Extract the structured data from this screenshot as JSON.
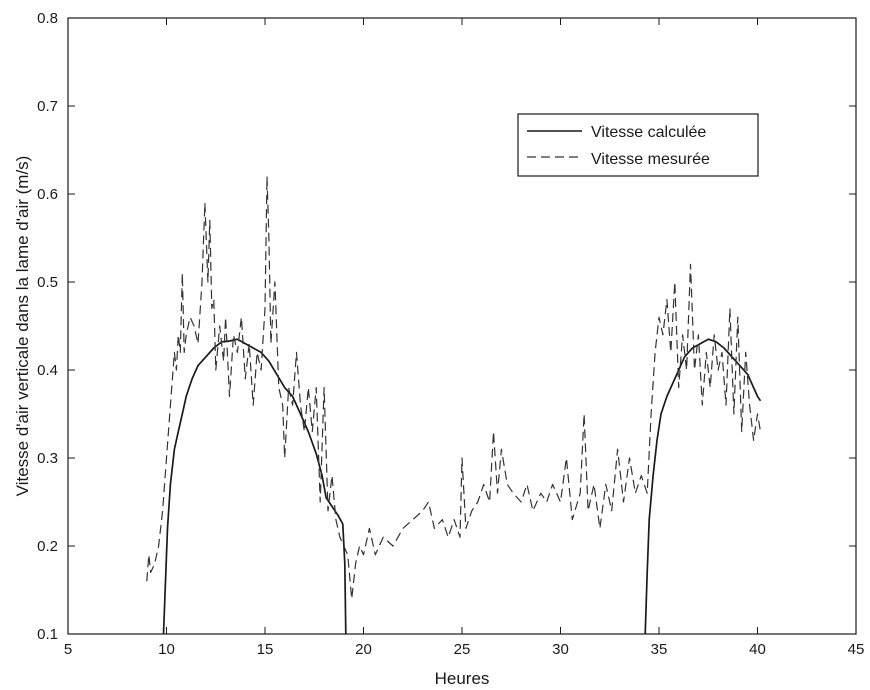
{
  "chart_data": {
    "type": "line",
    "title": "",
    "xlabel": "Heures",
    "ylabel": "Vitesse d'air verticale dans la lame d'air (m/s)",
    "xlim": [
      5,
      45
    ],
    "ylim": [
      0.1,
      0.8
    ],
    "xticks": [
      5,
      10,
      15,
      20,
      25,
      30,
      35,
      40,
      45
    ],
    "yticks": [
      0.1,
      0.2,
      0.3,
      0.4,
      0.5,
      0.6,
      0.7,
      0.8
    ],
    "grid": false,
    "legend_position": "top-right",
    "series": [
      {
        "name": "Vitesse calculée",
        "style": "solid",
        "color": "#1a1a1a",
        "points": [
          [
            9.85,
            0.1
          ],
          [
            9.95,
            0.16
          ],
          [
            10.05,
            0.22
          ],
          [
            10.2,
            0.27
          ],
          [
            10.4,
            0.31
          ],
          [
            10.6,
            0.33
          ],
          [
            10.8,
            0.35
          ],
          [
            11.0,
            0.37
          ],
          [
            11.3,
            0.39
          ],
          [
            11.6,
            0.405
          ],
          [
            12.0,
            0.415
          ],
          [
            12.4,
            0.425
          ],
          [
            12.8,
            0.432
          ],
          [
            13.2,
            0.433
          ],
          [
            13.6,
            0.435
          ],
          [
            14.0,
            0.43
          ],
          [
            14.4,
            0.425
          ],
          [
            14.8,
            0.42
          ],
          [
            15.2,
            0.41
          ],
          [
            15.6,
            0.395
          ],
          [
            16.0,
            0.38
          ],
          [
            16.4,
            0.37
          ],
          [
            16.8,
            0.35
          ],
          [
            17.2,
            0.33
          ],
          [
            17.6,
            0.305
          ],
          [
            17.9,
            0.28
          ],
          [
            18.1,
            0.255
          ],
          [
            18.4,
            0.245
          ],
          [
            18.7,
            0.235
          ],
          [
            18.95,
            0.225
          ],
          [
            19.05,
            0.18
          ],
          [
            19.1,
            0.1
          ],
          null,
          [
            34.3,
            0.1
          ],
          [
            34.4,
            0.17
          ],
          [
            34.5,
            0.23
          ],
          [
            34.7,
            0.28
          ],
          [
            34.9,
            0.32
          ],
          [
            35.1,
            0.35
          ],
          [
            35.4,
            0.37
          ],
          [
            35.7,
            0.385
          ],
          [
            36.0,
            0.4
          ],
          [
            36.3,
            0.415
          ],
          [
            36.7,
            0.425
          ],
          [
            37.1,
            0.43
          ],
          [
            37.5,
            0.435
          ],
          [
            37.9,
            0.432
          ],
          [
            38.3,
            0.425
          ],
          [
            38.7,
            0.415
          ],
          [
            39.1,
            0.405
          ],
          [
            39.5,
            0.395
          ],
          [
            39.8,
            0.38
          ],
          [
            40.0,
            0.37
          ],
          [
            40.15,
            0.365
          ]
        ]
      },
      {
        "name": "Vitesse mesurée",
        "style": "dashed",
        "color": "#333333",
        "points": [
          [
            9.0,
            0.16
          ],
          [
            9.1,
            0.19
          ],
          [
            9.2,
            0.17
          ],
          [
            9.4,
            0.18
          ],
          [
            9.6,
            0.2
          ],
          [
            9.8,
            0.24
          ],
          [
            10.0,
            0.3
          ],
          [
            10.2,
            0.36
          ],
          [
            10.4,
            0.42
          ],
          [
            10.5,
            0.4
          ],
          [
            10.6,
            0.44
          ],
          [
            10.7,
            0.42
          ],
          [
            10.8,
            0.51
          ],
          [
            10.9,
            0.42
          ],
          [
            11.0,
            0.44
          ],
          [
            11.2,
            0.46
          ],
          [
            11.4,
            0.45
          ],
          [
            11.6,
            0.43
          ],
          [
            11.8,
            0.5
          ],
          [
            11.95,
            0.59
          ],
          [
            12.1,
            0.5
          ],
          [
            12.2,
            0.57
          ],
          [
            12.3,
            0.47
          ],
          [
            12.4,
            0.48
          ],
          [
            12.5,
            0.4
          ],
          [
            12.7,
            0.45
          ],
          [
            12.9,
            0.41
          ],
          [
            13.0,
            0.46
          ],
          [
            13.2,
            0.37
          ],
          [
            13.4,
            0.44
          ],
          [
            13.6,
            0.42
          ],
          [
            13.8,
            0.46
          ],
          [
            14.0,
            0.39
          ],
          [
            14.2,
            0.43
          ],
          [
            14.4,
            0.36
          ],
          [
            14.6,
            0.42
          ],
          [
            14.8,
            0.4
          ],
          [
            15.0,
            0.47
          ],
          [
            15.1,
            0.62
          ],
          [
            15.2,
            0.55
          ],
          [
            15.3,
            0.43
          ],
          [
            15.5,
            0.5
          ],
          [
            15.7,
            0.38
          ],
          [
            15.9,
            0.36
          ],
          [
            16.0,
            0.3
          ],
          [
            16.2,
            0.38
          ],
          [
            16.4,
            0.36
          ],
          [
            16.6,
            0.42
          ],
          [
            16.8,
            0.36
          ],
          [
            17.0,
            0.33
          ],
          [
            17.2,
            0.38
          ],
          [
            17.4,
            0.33
          ],
          [
            17.6,
            0.38
          ],
          [
            17.8,
            0.25
          ],
          [
            18.0,
            0.38
          ],
          [
            18.2,
            0.24
          ],
          [
            18.4,
            0.28
          ],
          [
            18.6,
            0.23
          ],
          [
            18.8,
            0.21
          ],
          [
            19.0,
            0.2
          ],
          [
            19.2,
            0.19
          ],
          [
            19.4,
            0.14
          ],
          [
            19.6,
            0.18
          ],
          [
            19.8,
            0.2
          ],
          [
            20.0,
            0.19
          ],
          [
            20.3,
            0.22
          ],
          [
            20.6,
            0.19
          ],
          [
            21.0,
            0.21
          ],
          [
            21.5,
            0.2
          ],
          [
            22.0,
            0.22
          ],
          [
            22.5,
            0.23
          ],
          [
            23.0,
            0.24
          ],
          [
            23.3,
            0.25
          ],
          [
            23.6,
            0.22
          ],
          [
            24.0,
            0.23
          ],
          [
            24.3,
            0.21
          ],
          [
            24.6,
            0.23
          ],
          [
            24.9,
            0.21
          ],
          [
            25.0,
            0.3
          ],
          [
            25.2,
            0.22
          ],
          [
            25.5,
            0.24
          ],
          [
            25.8,
            0.25
          ],
          [
            26.1,
            0.27
          ],
          [
            26.4,
            0.25
          ],
          [
            26.6,
            0.33
          ],
          [
            26.8,
            0.26
          ],
          [
            27.0,
            0.31
          ],
          [
            27.3,
            0.27
          ],
          [
            27.6,
            0.26
          ],
          [
            28.0,
            0.25
          ],
          [
            28.3,
            0.27
          ],
          [
            28.6,
            0.24
          ],
          [
            29.0,
            0.26
          ],
          [
            29.3,
            0.25
          ],
          [
            29.6,
            0.27
          ],
          [
            30.0,
            0.25
          ],
          [
            30.3,
            0.3
          ],
          [
            30.6,
            0.23
          ],
          [
            31.0,
            0.26
          ],
          [
            31.2,
            0.35
          ],
          [
            31.4,
            0.24
          ],
          [
            31.7,
            0.27
          ],
          [
            32.0,
            0.22
          ],
          [
            32.3,
            0.27
          ],
          [
            32.6,
            0.24
          ],
          [
            32.9,
            0.31
          ],
          [
            33.2,
            0.25
          ],
          [
            33.5,
            0.3
          ],
          [
            33.8,
            0.26
          ],
          [
            34.1,
            0.28
          ],
          [
            34.4,
            0.26
          ],
          [
            34.6,
            0.35
          ],
          [
            34.8,
            0.42
          ],
          [
            35.0,
            0.46
          ],
          [
            35.2,
            0.44
          ],
          [
            35.4,
            0.48
          ],
          [
            35.6,
            0.42
          ],
          [
            35.8,
            0.5
          ],
          [
            36.0,
            0.38
          ],
          [
            36.2,
            0.44
          ],
          [
            36.4,
            0.4
          ],
          [
            36.6,
            0.52
          ],
          [
            36.8,
            0.4
          ],
          [
            37.0,
            0.44
          ],
          [
            37.2,
            0.36
          ],
          [
            37.4,
            0.42
          ],
          [
            37.6,
            0.38
          ],
          [
            37.8,
            0.44
          ],
          [
            38.0,
            0.4
          ],
          [
            38.2,
            0.42
          ],
          [
            38.4,
            0.36
          ],
          [
            38.6,
            0.47
          ],
          [
            38.8,
            0.35
          ],
          [
            39.0,
            0.46
          ],
          [
            39.2,
            0.33
          ],
          [
            39.4,
            0.42
          ],
          [
            39.6,
            0.36
          ],
          [
            39.8,
            0.32
          ],
          [
            40.0,
            0.35
          ],
          [
            40.15,
            0.33
          ]
        ]
      }
    ]
  }
}
